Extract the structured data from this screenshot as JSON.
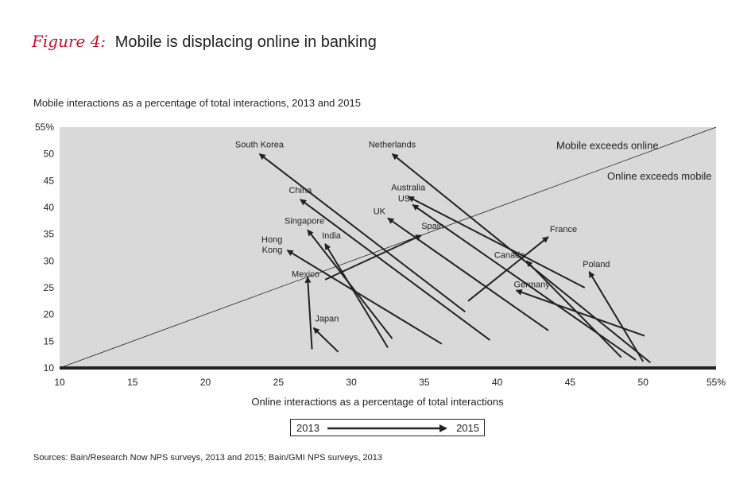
{
  "figure": {
    "label": "Figure 4:",
    "title": "Mobile is displacing online in banking",
    "sources": "Sources: Bain/Research Now NPS surveys, 2013 and 2015; Bain/GMI NPS surveys, 2013"
  },
  "legend": {
    "start": "2013",
    "end": "2015"
  },
  "chart_data": {
    "type": "scatter",
    "title": "Mobile interactions as a percentage of total interactions, 2013 and 2015",
    "xlabel": "Online interactions as a percentage of total interactions",
    "ylabel": "",
    "xlim": [
      10,
      55
    ],
    "ylim": [
      10,
      55
    ],
    "x_ticks": [
      "10",
      "15",
      "20",
      "25",
      "30",
      "35",
      "40",
      "45",
      "50",
      "55%"
    ],
    "y_ticks": [
      "10",
      "15",
      "20",
      "25",
      "30",
      "35",
      "40",
      "45",
      "50",
      "55%"
    ],
    "background": "#d9d9d9",
    "arrow_color": "#222222",
    "grid": false,
    "diagonal_annotations": [
      "Mobile exceeds online",
      "Online exceeds mobile"
    ],
    "series": [
      {
        "name": "South Korea",
        "from": [
          37.8,
          20.5
        ],
        "to": [
          23.7,
          50.0
        ]
      },
      {
        "name": "Netherlands",
        "from": [
          50.5,
          11.0
        ],
        "to": [
          32.8,
          50.0
        ]
      },
      {
        "name": "China",
        "from": [
          39.5,
          15.2
        ],
        "to": [
          26.5,
          41.5
        ]
      },
      {
        "name": "Australia",
        "from": [
          46.0,
          25.0
        ],
        "to": [
          33.9,
          42.0
        ]
      },
      {
        "name": "US",
        "from": [
          49.5,
          11.5
        ],
        "to": [
          34.2,
          40.5
        ]
      },
      {
        "name": "UK",
        "from": [
          43.5,
          17.0
        ],
        "to": [
          32.5,
          38.0
        ]
      },
      {
        "name": "Spain",
        "from": [
          28.2,
          26.5
        ],
        "to": [
          34.8,
          34.8
        ]
      },
      {
        "name": "France",
        "from": [
          38.0,
          22.5
        ],
        "to": [
          43.5,
          34.5
        ]
      },
      {
        "name": "Singapore",
        "from": [
          32.8,
          15.5
        ],
        "to": [
          27.0,
          35.8
        ]
      },
      {
        "name": "India",
        "from": [
          32.5,
          13.8
        ],
        "to": [
          28.2,
          33.2
        ]
      },
      {
        "name": "Hong Kong",
        "from": [
          36.2,
          14.5
        ],
        "to": [
          25.6,
          32.0
        ]
      },
      {
        "name": "Canada",
        "from": [
          48.5,
          12.0
        ],
        "to": [
          42.0,
          30.0
        ]
      },
      {
        "name": "Poland",
        "from": [
          50.0,
          11.2
        ],
        "to": [
          46.3,
          28.0
        ]
      },
      {
        "name": "Germany",
        "from": [
          50.1,
          16.0
        ],
        "to": [
          41.3,
          24.5
        ]
      },
      {
        "name": "Mexico",
        "from": [
          27.3,
          13.5
        ],
        "to": [
          27.0,
          27.0
        ]
      },
      {
        "name": "Japan",
        "from": [
          29.1,
          13.0
        ],
        "to": [
          27.4,
          17.5
        ]
      }
    ]
  }
}
